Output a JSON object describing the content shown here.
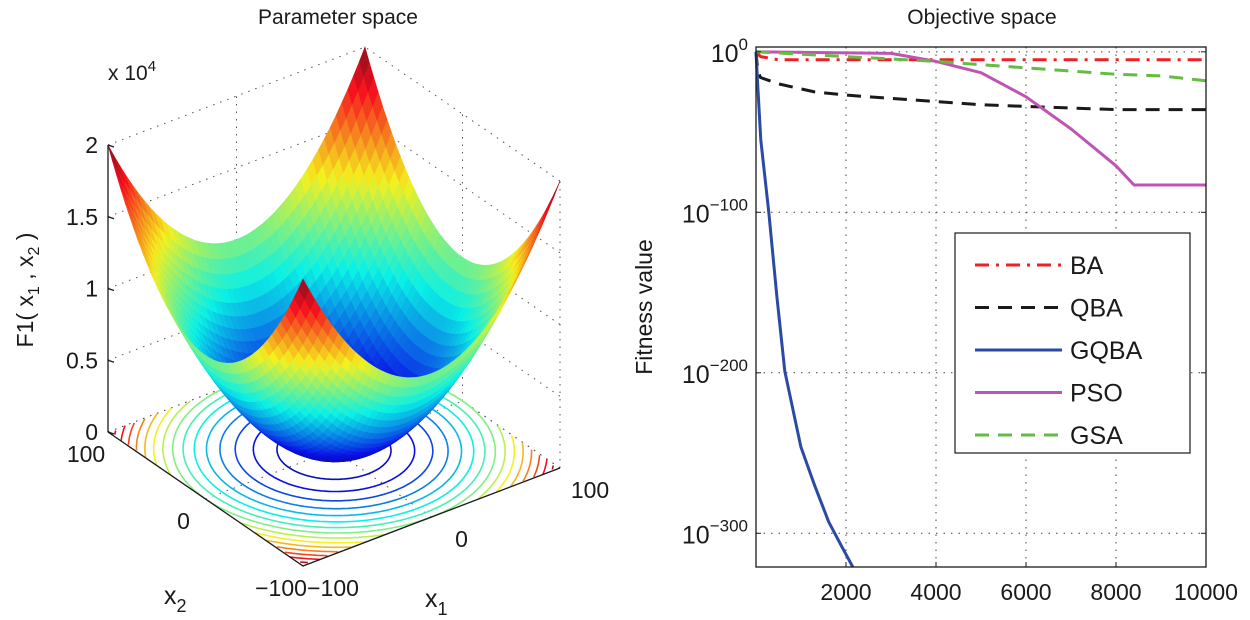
{
  "chart_data": [
    {
      "type": "surface",
      "title": "Parameter space",
      "zlabel": "F1( x1 , x2 )",
      "xlabel": "x1",
      "ylabel": "x2",
      "z_exponent_label": "x 10^4",
      "surface": "x1^2 + x2^2",
      "x1_range": [
        -100,
        100
      ],
      "x2_range": [
        -100,
        100
      ],
      "zlim": [
        0,
        20000
      ],
      "z_ticks": [
        "0",
        "0.5",
        "1",
        "1.5",
        "2"
      ],
      "x1_ticks": [
        "−100",
        "0",
        "100"
      ],
      "x2_ticks": [
        "−100",
        "0",
        "100"
      ],
      "colormap": "jet",
      "base_contours": true,
      "grid": true
    },
    {
      "type": "line",
      "title": "Objective space",
      "xlabel": "",
      "ylabel": "Fitness value",
      "yscale": "log",
      "xlim": [
        0,
        10000
      ],
      "ylim": [
        1e-321,
        1000.0
      ],
      "x_ticks": [
        "2000",
        "4000",
        "6000",
        "8000",
        "10000"
      ],
      "y_ticks": [
        {
          "base": "10",
          "exp": "0"
        },
        {
          "base": "10",
          "exp": "−100"
        },
        {
          "base": "10",
          "exp": "−200"
        },
        {
          "base": "10",
          "exp": "−300"
        }
      ],
      "grid": true,
      "legend_position": "right-center",
      "series": [
        {
          "name": "BA",
          "color": "#ee2024",
          "style": "dashdot",
          "x": [
            0,
            100,
            500,
            10000
          ],
          "y": [
            1.0,
            0.001,
            1e-05,
            1e-05
          ]
        },
        {
          "name": "QBA",
          "color": "#1a1a1a",
          "style": "dashed",
          "x": [
            0,
            40,
            100,
            500,
            1300,
            2000,
            3000,
            4000,
            5000,
            6000,
            8000,
            10000
          ],
          "y": [
            1.0,
            1e-12,
            1e-16,
            1e-20,
            1e-25,
            1e-27,
            1e-29,
            1e-31,
            1e-33,
            1e-34,
            1e-36,
            1e-36
          ]
        },
        {
          "name": "GQBA",
          "color": "#2b4aa6",
          "style": "solid",
          "x": [
            0,
            30,
            107,
            285,
            462,
            640,
            996,
            1300,
            1618,
            1900,
            2151
          ],
          "y": [
            1.0,
            1e-17,
            1e-55,
            1e-100,
            1e-152,
            1e-199,
            1e-246,
            1e-270,
            1e-293,
            1e-308,
            1e-321
          ]
        },
        {
          "name": "PSO",
          "color": "#c054b4",
          "style": "solid",
          "x": [
            0,
            3000,
            4000,
            5000,
            6000,
            7000,
            8000,
            8400,
            10000
          ],
          "y": [
            1.0,
            0.1,
            1e-06,
            1e-13,
            1e-28,
            1e-48,
            1e-71,
            1e-83,
            1e-83
          ]
        },
        {
          "name": "GSA",
          "color": "#66bb44",
          "style": "dashed",
          "x": [
            0,
            2000,
            4000,
            6000,
            8000,
            9000,
            10000
          ],
          "y": [
            1.0,
            0.001,
            1e-06,
            1e-10,
            1e-14,
            1e-15,
            1e-18
          ]
        }
      ]
    }
  ]
}
